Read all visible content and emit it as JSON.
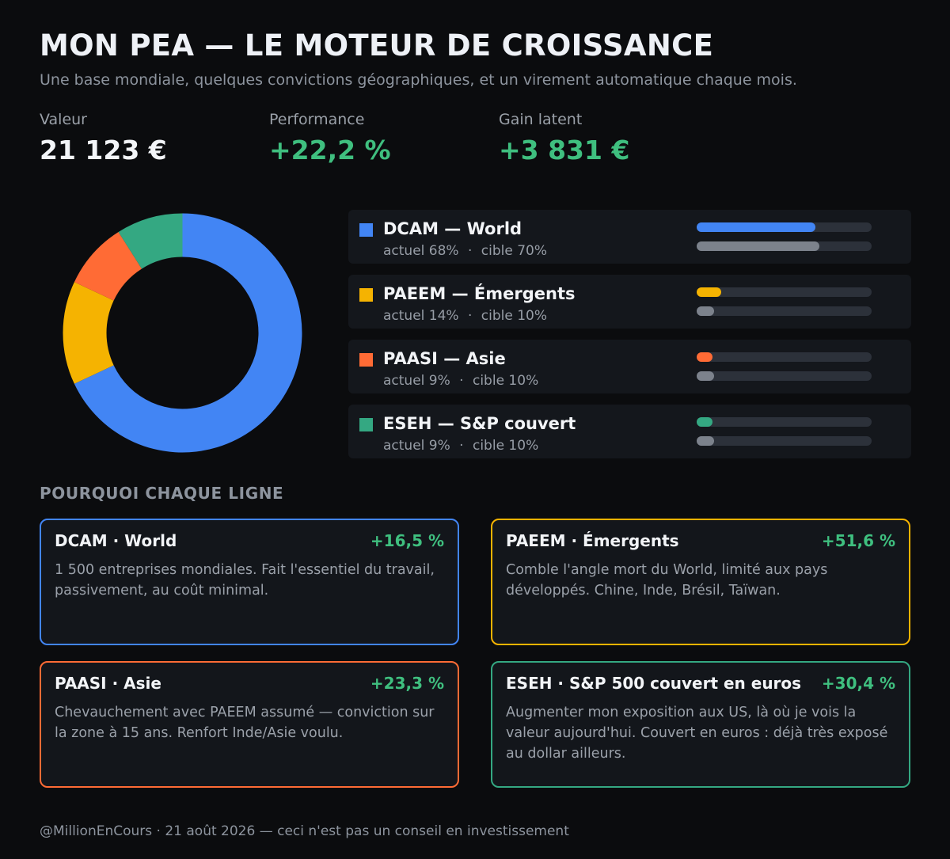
{
  "header": {
    "title": "MON PEA — LE MOTEUR DE CROISSANCE",
    "subtitle": "Une base mondiale, quelques convictions géographiques, et un virement automatique chaque mois."
  },
  "kpis": [
    {
      "label": "Valeur",
      "value": "21 123 €"
    },
    {
      "label": "Performance",
      "value": "+22,2 %"
    },
    {
      "label": "Gain latent",
      "value": "+3 831 €"
    }
  ],
  "colors": {
    "dcam": "#4285f4",
    "paeem": "#f5b301",
    "paasi": "#ff6b35",
    "eseh": "#34a882",
    "target_bar": "#7c828c",
    "positive": "#3fbf7f"
  },
  "allocation": [
    {
      "name": "DCAM — World",
      "actual_text": "actuel 68%",
      "target_text": "cible 70%",
      "actual": 68,
      "target": 70,
      "color_key": "dcam",
      "icon": "square-swatch"
    },
    {
      "name": "PAEEM — Émergents",
      "actual_text": "actuel 14%",
      "target_text": "cible 10%",
      "actual": 14,
      "target": 10,
      "color_key": "paeem",
      "icon": "square-swatch"
    },
    {
      "name": "PAASI — Asie",
      "actual_text": "actuel 9%",
      "target_text": "cible 10%",
      "actual": 9,
      "target": 10,
      "color_key": "paasi",
      "icon": "square-swatch"
    },
    {
      "name": "ESEH — S&P couvert",
      "actual_text": "actuel 9%",
      "target_text": "cible 10%",
      "actual": 9,
      "target": 10,
      "color_key": "eseh",
      "icon": "square-swatch"
    }
  ],
  "alloc_separator": "·",
  "section_title": "POURQUOI CHAQUE LIGNE",
  "cards": [
    {
      "name": "DCAM · World",
      "perf": "+16,5 %",
      "text": "1 500 entreprises mondiales. Fait l'essentiel du travail, passivement, au coût minimal.",
      "color_key": "dcam"
    },
    {
      "name": "PAEEM · Émergents",
      "perf": "+51,6 %",
      "text": "Comble l'angle mort du World, limité aux pays développés. Chine, Inde, Brésil, Taïwan.",
      "color_key": "paeem"
    },
    {
      "name": "PAASI · Asie",
      "perf": "+23,3 %",
      "text": "Chevauchement avec PAEEM assumé — conviction sur la zone à 15 ans. Renfort Inde/Asie voulu.",
      "color_key": "paasi"
    },
    {
      "name": "ESEH · S&P 500 couvert en euros",
      "perf": "+30,4 %",
      "text": "Augmenter mon exposition aux US, là où je vois la valeur aujourd'hui. Couvert en euros : déjà très exposé au dollar ailleurs.",
      "color_key": "eseh"
    }
  ],
  "footer": "@MillionEnCours · 21 août 2026 — ceci n'est pas un conseil en investissement",
  "chart_data": {
    "type": "pie",
    "style": "donut",
    "categories": [
      "DCAM",
      "PAEEM",
      "PAASI",
      "ESEH"
    ],
    "values": [
      68,
      14,
      9,
      9
    ],
    "colors": [
      "#4285f4",
      "#f5b301",
      "#ff6b35",
      "#34a882"
    ],
    "start": "top, clockwise"
  }
}
